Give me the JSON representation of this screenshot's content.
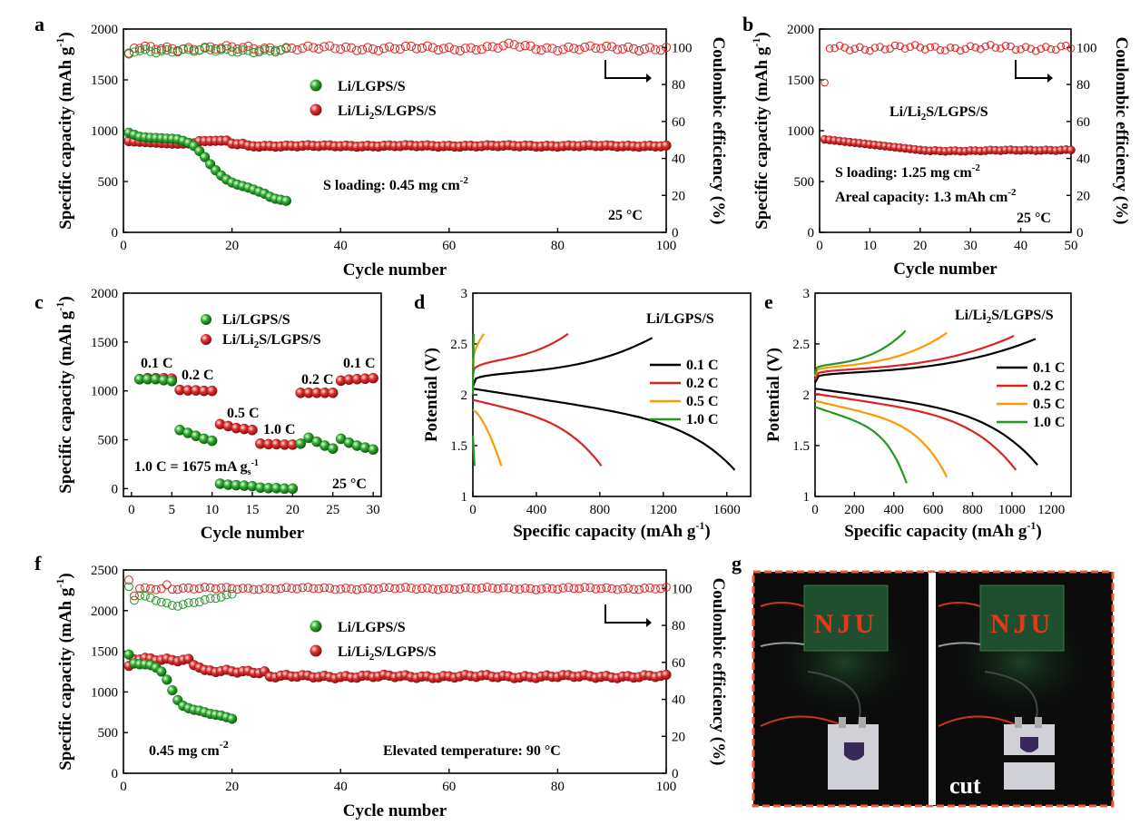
{
  "panels": {
    "a": "a",
    "b": "b",
    "c": "c",
    "d": "d",
    "e": "e",
    "f": "f",
    "g": "g"
  },
  "labels": {
    "spec_cap": "Specific capacity (mAh g",
    "sup_neg1": "-1",
    "close": ")",
    "coulombic": "Coulombic efficiency (%)",
    "cycle": "Cycle number",
    "potential": "Potential (V)",
    "spec_cap_x": "Specific capacity (mAh g"
  },
  "legend": {
    "lgps": "Li/LGPS/S",
    "li2s_a": "Li/Li",
    "li2s_sub": "2",
    "li2s_b": "S/LGPS/S"
  },
  "annotations": {
    "a_loading_a": "S loading: 0.45 mg cm",
    "a_loading_sup": "-2",
    "temp25": "25 °C",
    "b_loading": "S loading: 1.25 mg cm",
    "b_loading_sup": "-2",
    "b_areal": "Areal capacity: 1.3 mAh cm",
    "b_areal_sup": "-2",
    "c_rate_a": "1.0 C = 1675 mA g",
    "c_rate_sub": "s",
    "c_rate_sup": "-1",
    "c_r1": "0.1 C",
    "c_r2": "0.2 C",
    "c_r3": "0.5 C",
    "c_r4": "1.0 C",
    "c_r5": "0.2 C",
    "c_r6": "0.1 C",
    "d_title": "Li/LGPS/S",
    "f_loading_a": "0.45 mg cm",
    "f_loading_sup": "-2",
    "f_temp": "Elevated temperature: 90 °C",
    "g_sign": "NJU",
    "g_cut": "cut"
  },
  "colors": {
    "green": "#1f9a1f",
    "red": "#dd2222",
    "black": "#000000",
    "orange": "#ff9900",
    "frame": "#f05a3a"
  },
  "chart_data": [
    {
      "id": "a",
      "type": "scatter",
      "title": "",
      "xlabel": "Cycle number",
      "ylabel": "Specific capacity (mAh g-1)",
      "y2label": "Coulombic efficiency (%)",
      "xlim": [
        0,
        100
      ],
      "ylim": [
        0,
        2000
      ],
      "y2lim": [
        0,
        110
      ],
      "xticks": [
        0,
        20,
        40,
        60,
        80,
        100
      ],
      "yticks": [
        0,
        500,
        1000,
        1500,
        2000
      ],
      "y2ticks": [
        0,
        20,
        40,
        60,
        80,
        100
      ],
      "series": [
        {
          "name": "Li/LGPS/S capacity",
          "values": [
            980,
            960,
            940,
            935,
            930,
            928,
            925,
            922,
            920,
            915,
            900,
            880,
            850,
            800,
            740,
            670,
            610,
            560,
            520,
            490,
            470,
            455,
            440,
            420,
            400,
            380,
            350,
            330,
            320,
            310
          ]
        },
        {
          "name": "Li/Li2S/LGPS/S capacity",
          "values_summary": "~900 at cycle 1, ~880 cycles 15-20, ~845-855 cycles 20-100"
        },
        {
          "name": "Li/LGPS/S CE (%)",
          "values_summary": "~97-99.5 cycles 1-30"
        },
        {
          "name": "Li/Li2S/LGPS/S CE (%)",
          "values_summary": "~99-101, peak ~102 near cycle 72"
        }
      ]
    },
    {
      "id": "b",
      "type": "scatter",
      "xlabel": "Cycle number",
      "ylabel": "Specific capacity (mAh g-1)",
      "y2label": "Coulombic efficiency (%)",
      "xlim": [
        0,
        50
      ],
      "ylim": [
        0,
        2000
      ],
      "y2lim": [
        0,
        110
      ],
      "xticks": [
        0,
        10,
        20,
        30,
        40,
        50
      ],
      "yticks": [
        0,
        500,
        1000,
        1500,
        2000
      ],
      "y2ticks": [
        0,
        20,
        40,
        60,
        80,
        100
      ],
      "series": [
        {
          "name": "Li/Li2S/LGPS/S capacity",
          "values_summary": "~920 at cycle 1 decreasing to ~800 by cycle 20, ~810 at cycle 50"
        },
        {
          "name": "Li/Li2S/LGPS/S CE (%)",
          "values_summary": "~81 at cycle 1, ~98-102 afterwards"
        }
      ]
    },
    {
      "id": "c",
      "type": "scatter",
      "xlabel": "Cycle number",
      "ylabel": "Specific capacity (mAh g-1)",
      "xlim": [
        -1,
        31
      ],
      "ylim": [
        -80,
        2000
      ],
      "xticks": [
        0,
        5,
        10,
        15,
        20,
        25,
        30
      ],
      "yticks": [
        0,
        500,
        1000,
        1500,
        2000
      ],
      "series": [
        {
          "name": "Li/LGPS/S",
          "values": [
            1120,
            1120,
            1120,
            1110,
            1100,
            600,
            570,
            540,
            510,
            490,
            50,
            40,
            35,
            30,
            25,
            10,
            5,
            5,
            0,
            0,
            460,
            520,
            480,
            440,
            410,
            510,
            470,
            440,
            420,
            400
          ]
        },
        {
          "name": "Li/Li2S/LGPS/S",
          "values": [
            1120,
            1130,
            1130,
            1130,
            1125,
            1010,
            1005,
            1005,
            1000,
            1000,
            660,
            640,
            620,
            610,
            600,
            460,
            455,
            455,
            450,
            450,
            980,
            980,
            980,
            980,
            980,
            1105,
            1115,
            1120,
            1125,
            1130
          ]
        }
      ]
    },
    {
      "id": "d",
      "type": "line",
      "xlabel": "Specific capacity (mAh g-1)",
      "ylabel": "Potential (V)",
      "xlim": [
        0,
        1750
      ],
      "ylim": [
        1.0,
        3.0
      ],
      "xticks": [
        0,
        400,
        800,
        1200,
        1600
      ],
      "yticks": [
        1.0,
        1.5,
        2.0,
        2.5,
        3.0
      ],
      "series": [
        {
          "name": "0.1 C",
          "color": "#000000",
          "discharge_cap": 1650,
          "charge_cap": 1130
        },
        {
          "name": "0.2 C",
          "color": "#dd2222",
          "discharge_cap": 810,
          "charge_cap": 600
        },
        {
          "name": "0.5 C",
          "color": "#ff9900",
          "discharge_cap": 180,
          "charge_cap": 70
        },
        {
          "name": "1.0 C",
          "color": "#1f9a1f",
          "discharge_cap": 10,
          "charge_cap": 5
        }
      ]
    },
    {
      "id": "e",
      "type": "line",
      "xlabel": "Specific capacity (mAh g-1)",
      "ylabel": "Potential (V)",
      "xlim": [
        0,
        1300
      ],
      "ylim": [
        1.0,
        3.0
      ],
      "xticks": [
        0,
        200,
        400,
        600,
        800,
        1000,
        1200
      ],
      "yticks": [
        1.0,
        1.5,
        2.0,
        2.5,
        3.0
      ],
      "series": [
        {
          "name": "0.1 C",
          "color": "#000000",
          "discharge_cap": 1130,
          "charge_cap": 1120
        },
        {
          "name": "0.2 C",
          "color": "#dd2222",
          "discharge_cap": 1020,
          "charge_cap": 1010
        },
        {
          "name": "0.5 C",
          "color": "#ff9900",
          "discharge_cap": 670,
          "charge_cap": 670
        },
        {
          "name": "1.0 C",
          "color": "#1f9a1f",
          "discharge_cap": 465,
          "charge_cap": 460
        }
      ]
    },
    {
      "id": "f",
      "type": "scatter",
      "xlabel": "Cycle number",
      "ylabel": "Specific capacity (mAh g-1)",
      "y2label": "Coulombic efficiency (%)",
      "xlim": [
        0,
        100
      ],
      "ylim": [
        0,
        2500
      ],
      "y2lim": [
        0,
        110
      ],
      "xticks": [
        0,
        20,
        40,
        60,
        80,
        100
      ],
      "yticks": [
        0,
        500,
        1000,
        1500,
        2000,
        2500
      ],
      "y2ticks": [
        0,
        20,
        40,
        60,
        80,
        100
      ],
      "series": [
        {
          "name": "Li/LGPS/S capacity",
          "values": [
            1460,
            1350,
            1340,
            1340,
            1330,
            1300,
            1250,
            1150,
            1020,
            900,
            830,
            800,
            780,
            770,
            750,
            730,
            720,
            710,
            690,
            670
          ]
        },
        {
          "name": "Li/Li2S/LGPS/S capacity",
          "values_summary": "~1320 at cycle 1, ~1400 cycles 5-12, ~1250 cycles 15-25, ~1180-1200 cycles 30-100"
        },
        {
          "name": "Li/LGPS/S CE (%)",
          "values_summary": "~100 at cycle 1, dip to ~90 near cycle 10, ~96 by cycle 20"
        },
        {
          "name": "Li/Li2S/LGPS/S CE (%)",
          "values_summary": "~104 at cycle 1, ~100 afterwards"
        }
      ]
    }
  ]
}
